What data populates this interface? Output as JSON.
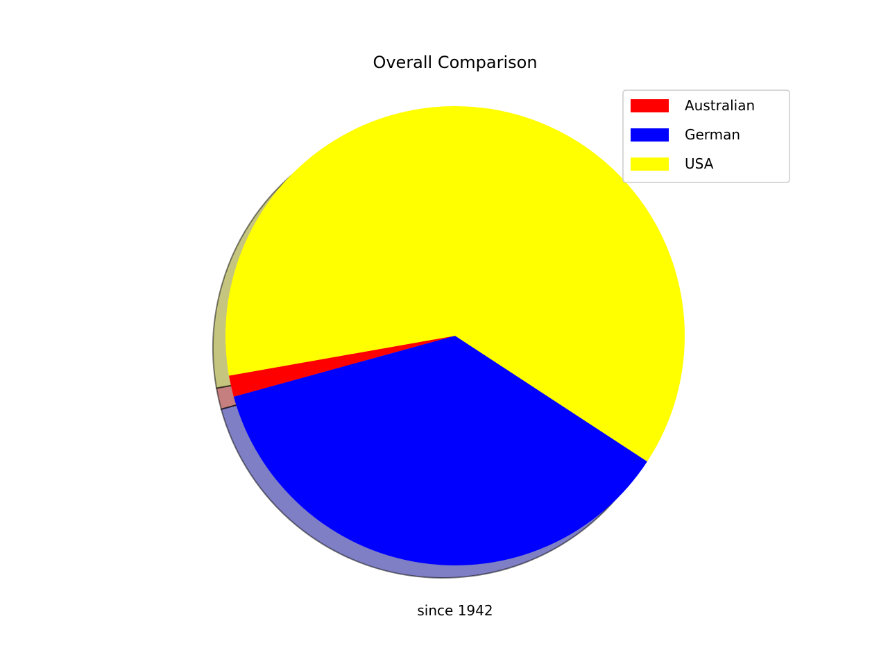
{
  "chart_data": {
    "type": "pie",
    "title": "Overall Comparison",
    "xlabel": "since 1942",
    "ylabel": "",
    "start_angle_deg": 190,
    "direction": "counterclockwise",
    "shadow": true,
    "legend_placement": "top-right",
    "slices": [
      {
        "label": "Australian",
        "value": 0.015,
        "color": "#ff0000"
      },
      {
        "label": "German",
        "value": 0.365,
        "color": "#0000ff"
      },
      {
        "label": "USA",
        "value": 0.62,
        "color": "#ffff00"
      }
    ]
  }
}
